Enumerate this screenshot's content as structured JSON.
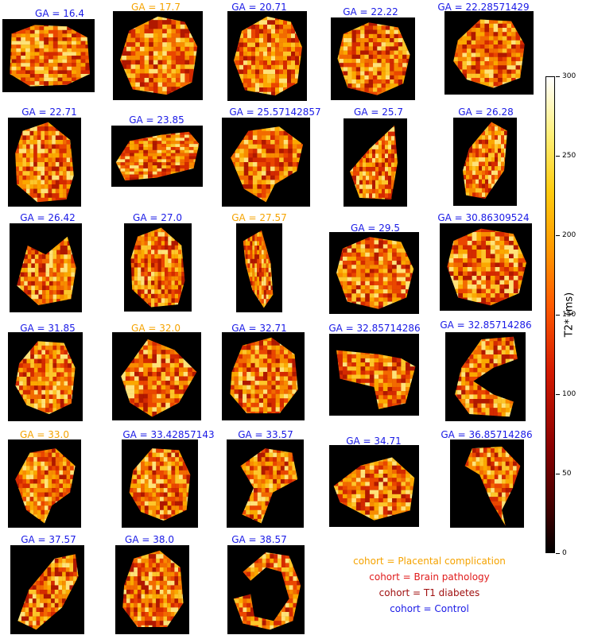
{
  "panels": [
    {
      "label": "GA = 16.4",
      "cohort": "control",
      "shape": "blob-wide"
    },
    {
      "label": "GA = 17.7",
      "cohort": "placental",
      "shape": "rounded-square"
    },
    {
      "label": "GA = 20.71",
      "cohort": "control",
      "shape": "rounded-square"
    },
    {
      "label": "GA = 22.22",
      "cohort": "control",
      "shape": "oval"
    },
    {
      "label": "GA = 22.28571429",
      "cohort": "control",
      "shape": "blob"
    },
    {
      "label": "GA = 22.71",
      "cohort": "control",
      "shape": "tall-blob"
    },
    {
      "label": "GA = 23.85",
      "cohort": "control",
      "shape": "bean"
    },
    {
      "label": "GA = 25.57142857",
      "cohort": "control",
      "shape": "irregular"
    },
    {
      "label": "GA = 25.7",
      "cohort": "control",
      "shape": "triangle"
    },
    {
      "label": "GA = 26.28",
      "cohort": "control",
      "shape": "tall-ellipse"
    },
    {
      "label": "GA = 26.42",
      "cohort": "control",
      "shape": "kidney"
    },
    {
      "label": "GA = 27.0",
      "cohort": "control",
      "shape": "tall-blob"
    },
    {
      "label": "GA = 27.57",
      "cohort": "placental",
      "shape": "wedge"
    },
    {
      "label": "GA = 29.5",
      "cohort": "control",
      "shape": "oval"
    },
    {
      "label": "GA = 30.86309524",
      "cohort": "control",
      "shape": "oval"
    },
    {
      "label": "GA = 31.85",
      "cohort": "control",
      "shape": "blob"
    },
    {
      "label": "GA = 32.0",
      "cohort": "placental",
      "shape": "diamond"
    },
    {
      "label": "GA = 32.71",
      "cohort": "control",
      "shape": "round"
    },
    {
      "label": "GA = 32.85714286",
      "cohort": "control",
      "shape": "shoe"
    },
    {
      "label": "GA = 32.85714286",
      "cohort": "control",
      "shape": "c-shape"
    },
    {
      "label": "GA = 33.0",
      "cohort": "placental",
      "shape": "irregular"
    },
    {
      "label": "GA = 33.42857143",
      "cohort": "control",
      "shape": "blob"
    },
    {
      "label": "GA = 33.57",
      "cohort": "control",
      "shape": "hook"
    },
    {
      "label": "GA = 34.71",
      "cohort": "control",
      "shape": "lens"
    },
    {
      "label": "GA = 36.85714286",
      "cohort": "control",
      "shape": "crescent"
    },
    {
      "label": "GA = 37.57",
      "cohort": "control",
      "shape": "diag-ellipse"
    },
    {
      "label": "GA = 38.0",
      "cohort": "control",
      "shape": "round"
    },
    {
      "label": "GA = 38.57",
      "cohort": "control",
      "shape": "ring"
    }
  ],
  "legend": [
    {
      "text": "cohort = Placental complication",
      "color": "#f5a300"
    },
    {
      "text": "cohort = Brain pathology",
      "color": "#e01b1b"
    },
    {
      "text": "cohort = T1 diabetes",
      "color": "#a01010"
    },
    {
      "text": "cohort = Control",
      "color": "#1a1ae6"
    }
  ],
  "colors": {
    "control": "#1a1ae6",
    "placental": "#f5a300"
  },
  "colorbar": {
    "title": "T2* (ms)",
    "ticks": [
      "0",
      "50",
      "100",
      "150",
      "200",
      "250",
      "300"
    ]
  }
}
